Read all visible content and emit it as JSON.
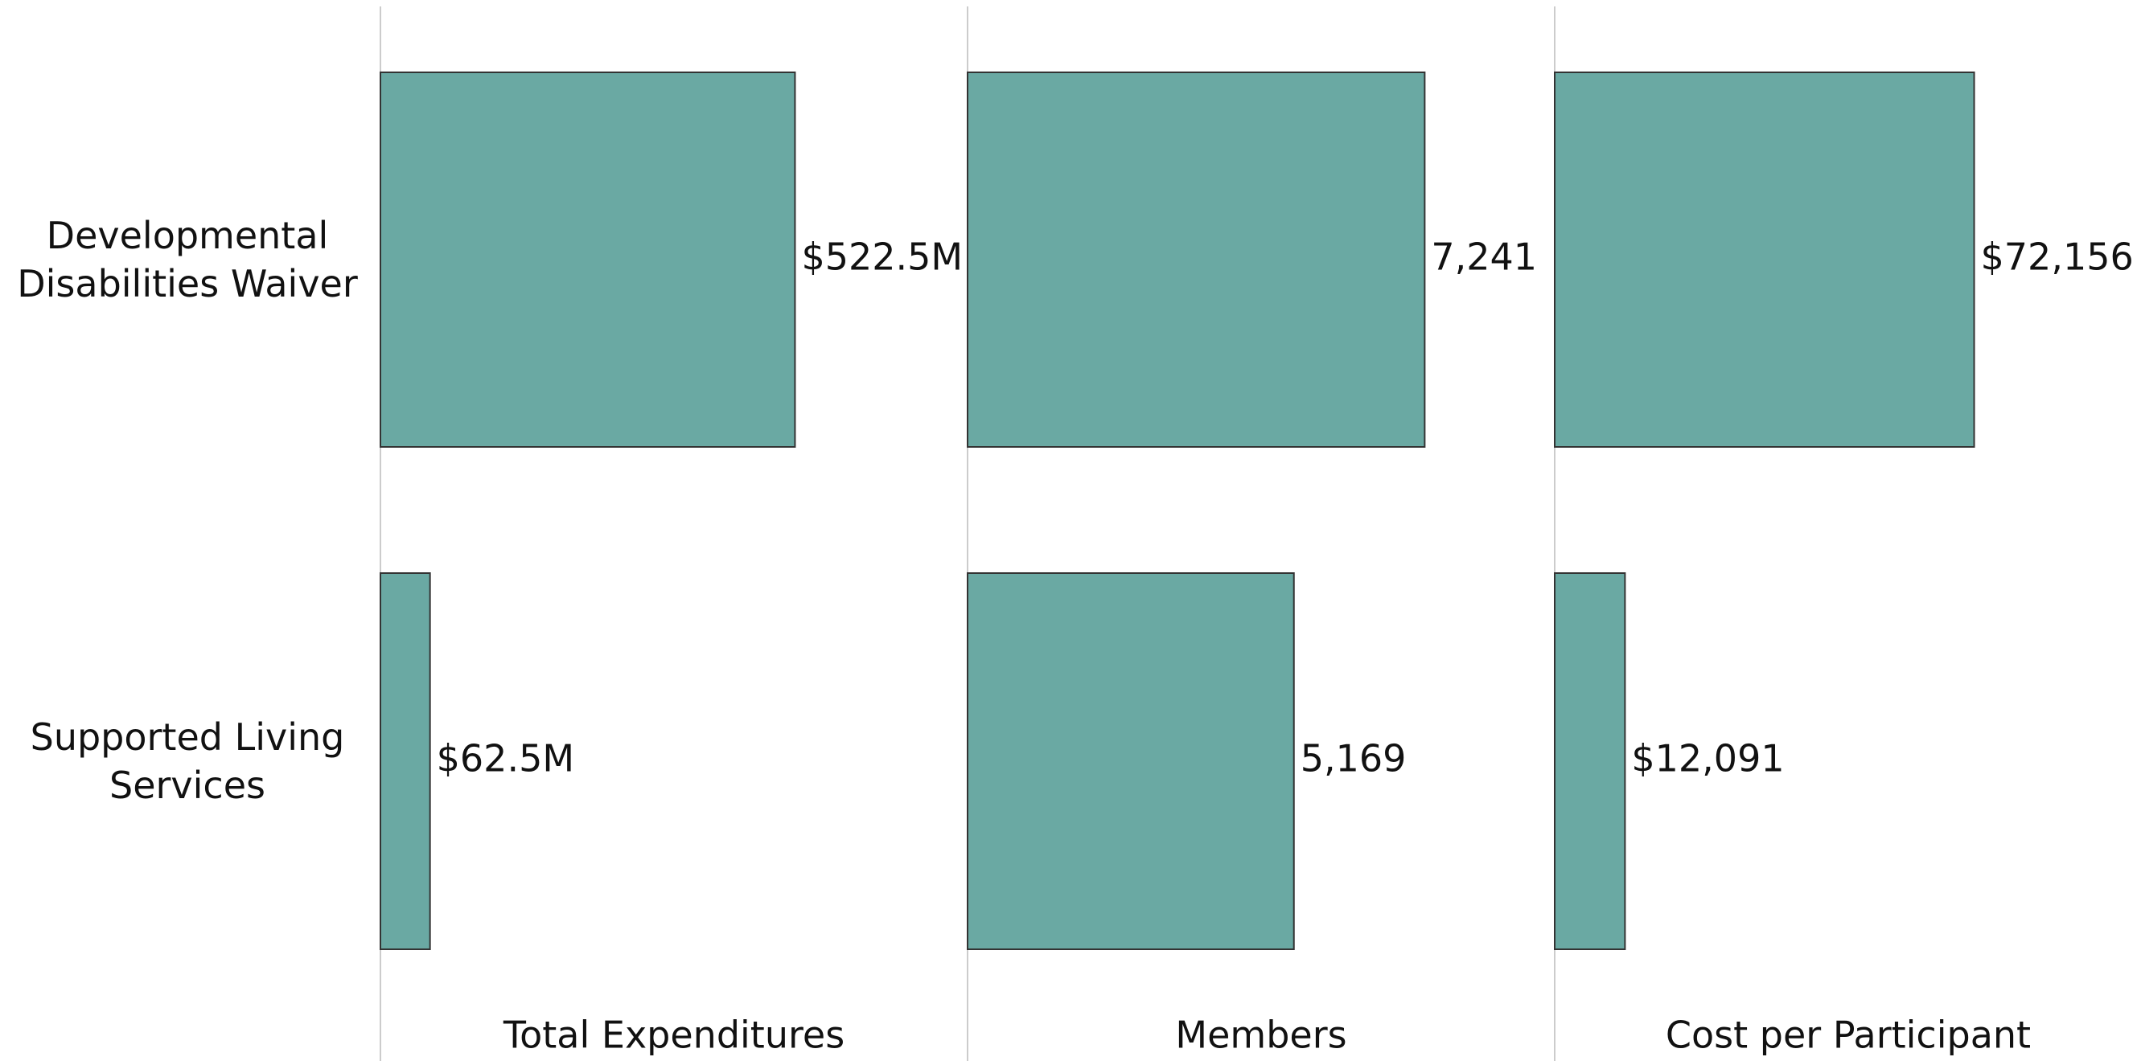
{
  "chart_data": {
    "type": "bar",
    "orientation": "horizontal",
    "color": "#6aa9a3",
    "categories": [
      "Developmental Disabilities Waiver",
      "Supported Living Services"
    ],
    "panels": [
      {
        "title": "Total Expenditures",
        "values": [
          522.5,
          62.5
        ],
        "value_labels": [
          "$522.5M",
          "$62.5M"
        ],
        "xlim": [
          0,
          740
        ]
      },
      {
        "title": "Members",
        "values": [
          7241,
          5169
        ],
        "value_labels": [
          "7,241",
          "5,169"
        ],
        "xlim": [
          0,
          9300
        ]
      },
      {
        "title": "Cost per Participant",
        "values": [
          72156,
          12091
        ],
        "value_labels": [
          "$72,156",
          "$12,091"
        ],
        "xlim": [
          0,
          101000
        ]
      }
    ]
  }
}
